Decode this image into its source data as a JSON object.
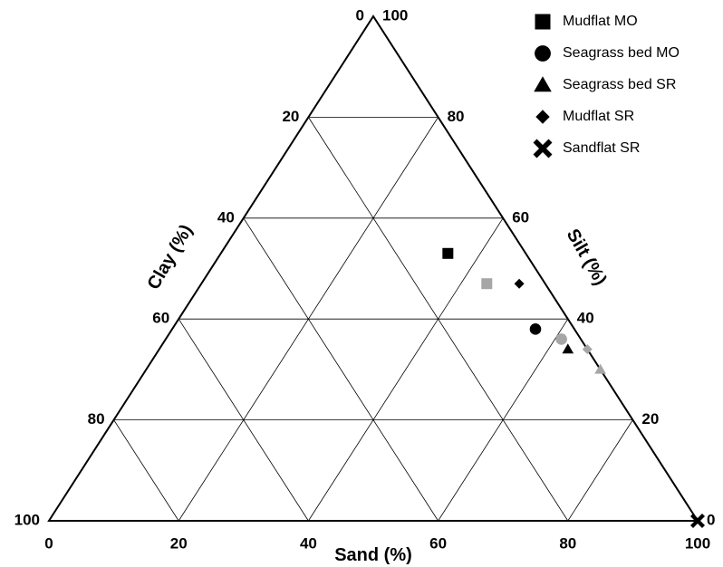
{
  "chart_data": {
    "type": "scatter",
    "subtype": "ternary",
    "axes": {
      "sand": {
        "label": "Sand (%)",
        "ticks": [
          "0",
          "20",
          "40",
          "60",
          "80",
          "100"
        ]
      },
      "silt": {
        "label": "Silt (%)",
        "ticks": [
          "0",
          "20",
          "40",
          "60",
          "80",
          "100"
        ]
      },
      "clay": {
        "label": "Clay (%)",
        "ticks": [
          "0",
          "20",
          "40",
          "60",
          "80",
          "100"
        ]
      }
    },
    "range": [
      0,
      100
    ],
    "grid_step": 20,
    "grid": true,
    "legend_position": "top-right",
    "colors": {
      "black": "#000000",
      "grey": "#a6a6a6"
    },
    "series": [
      {
        "name": "Mudflat MO",
        "marker": "square",
        "legend_color": "#000000",
        "points": [
          {
            "sand": 35,
            "silt": 53,
            "clay": 12,
            "color": "#000000"
          },
          {
            "sand": 44,
            "silt": 47,
            "clay": 9,
            "color": "#a6a6a6"
          }
        ]
      },
      {
        "name": "Seagrass bed MO",
        "marker": "circle",
        "legend_color": "#000000",
        "points": [
          {
            "sand": 56,
            "silt": 38,
            "clay": 6,
            "color": "#000000"
          },
          {
            "sand": 61,
            "silt": 36,
            "clay": 3,
            "color": "#a6a6a6"
          }
        ]
      },
      {
        "name": "Seagrass bed SR",
        "marker": "triangle",
        "legend_color": "#000000",
        "points": [
          {
            "sand": 63,
            "silt": 34,
            "clay": 3,
            "color": "#000000"
          },
          {
            "sand": 70,
            "silt": 30,
            "clay": 0,
            "color": "#a6a6a6"
          }
        ]
      },
      {
        "name": "Mudflat SR",
        "marker": "diamond",
        "legend_color": "#000000",
        "points": [
          {
            "sand": 49,
            "silt": 47,
            "clay": 4,
            "color": "#000000"
          },
          {
            "sand": 66,
            "silt": 34,
            "clay": 0,
            "color": "#a6a6a6"
          }
        ]
      },
      {
        "name": "Sandflat SR",
        "marker": "cross",
        "legend_color": "#000000",
        "points": [
          {
            "sand": 100,
            "silt": 0,
            "clay": 0,
            "color": "#000000"
          }
        ]
      }
    ]
  }
}
